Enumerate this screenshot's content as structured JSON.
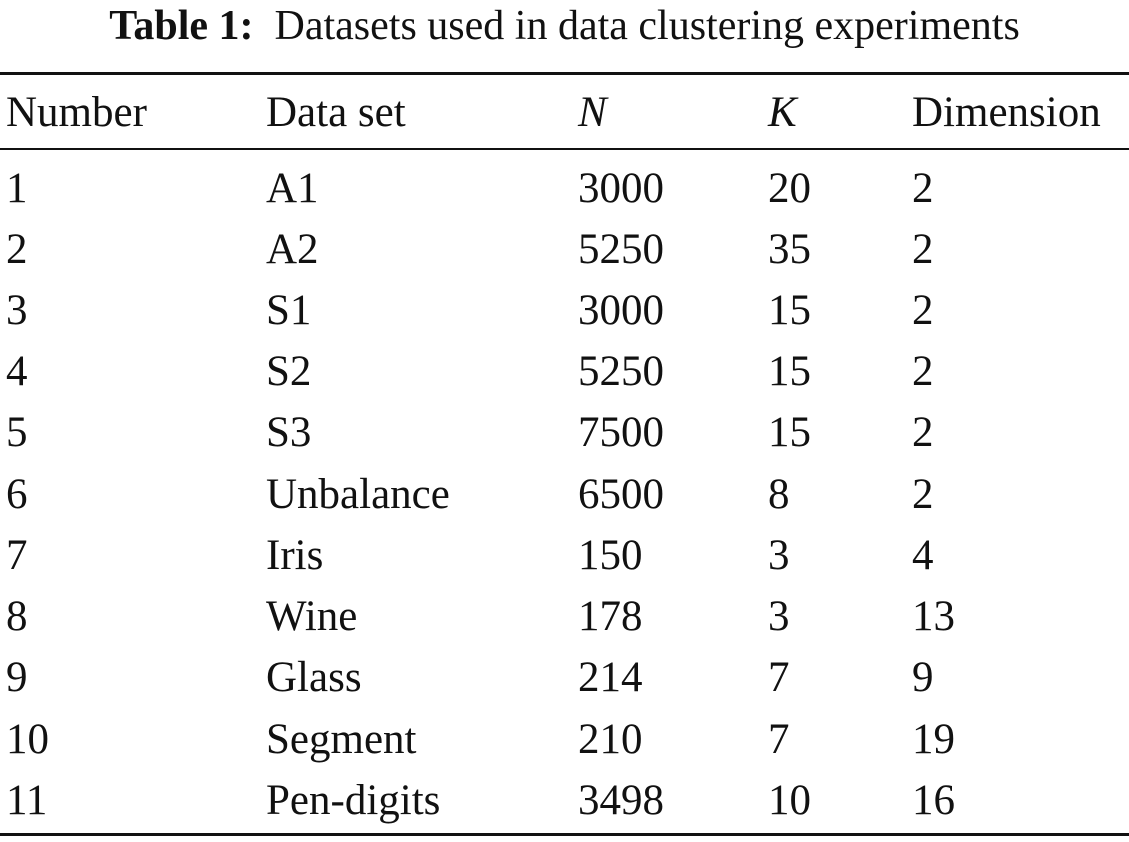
{
  "caption": {
    "label": "Table 1:",
    "text": "Datasets used in data clustering experiments"
  },
  "table": {
    "headers": {
      "number": "Number",
      "dataset": "Data set",
      "n": "N",
      "k": "K",
      "dimension": "Dimension"
    },
    "rows": [
      {
        "number": "1",
        "dataset": "A1",
        "n": "3000",
        "k": "20",
        "dimension": "2"
      },
      {
        "number": "2",
        "dataset": "A2",
        "n": "5250",
        "k": "35",
        "dimension": "2"
      },
      {
        "number": "3",
        "dataset": "S1",
        "n": "3000",
        "k": "15",
        "dimension": "2"
      },
      {
        "number": "4",
        "dataset": "S2",
        "n": "5250",
        "k": "15",
        "dimension": "2"
      },
      {
        "number": "5",
        "dataset": "S3",
        "n": "7500",
        "k": "15",
        "dimension": "2"
      },
      {
        "number": "6",
        "dataset": "Unbalance",
        "n": "6500",
        "k": "8",
        "dimension": "2"
      },
      {
        "number": "7",
        "dataset": "Iris",
        "n": "150",
        "k": "3",
        "dimension": "4"
      },
      {
        "number": "8",
        "dataset": "Wine",
        "n": "178",
        "k": "3",
        "dimension": "13"
      },
      {
        "number": "9",
        "dataset": "Glass",
        "n": "214",
        "k": "7",
        "dimension": "9"
      },
      {
        "number": "10",
        "dataset": "Segment",
        "n": "210",
        "k": "7",
        "dimension": "19"
      },
      {
        "number": "11",
        "dataset": "Pen-digits",
        "n": "3498",
        "k": "10",
        "dimension": "16"
      }
    ]
  }
}
